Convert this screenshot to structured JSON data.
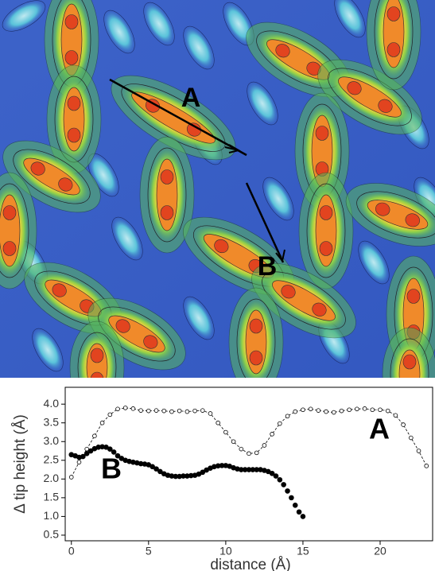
{
  "image": {
    "labels": [
      "A",
      "B"
    ]
  },
  "chart_data": {
    "type": "line",
    "xlabel": "distance (Å)",
    "ylabel": "Δ tip height (Å)",
    "xlim": [
      -0.4,
      23.4
    ],
    "ylim": [
      0.35,
      4.45
    ],
    "xticks": [
      0,
      5,
      10,
      15,
      20
    ],
    "yticks": [
      0.5,
      {
        "value": 1,
        "label": "1.0"
      },
      1.5,
      {
        "value": 2,
        "label": "2.0"
      },
      2.5,
      {
        "value": 3,
        "label": "3.0"
      },
      3.5,
      {
        "value": 4,
        "label": "4.0"
      }
    ],
    "series": [
      {
        "name": "A",
        "color": "#000000",
        "marker": "open",
        "line": "dashed",
        "x": [
          0,
          0.5,
          1,
          1.5,
          2,
          2.5,
          3,
          3.5,
          4,
          4.5,
          5,
          5.5,
          6,
          6.5,
          7,
          7.5,
          8,
          8.5,
          9,
          9.5,
          10,
          10.5,
          11,
          11.5,
          12,
          12.5,
          13,
          13.5,
          14,
          14.5,
          15,
          15.5,
          16,
          16.5,
          17,
          17.5,
          18,
          18.5,
          19,
          19.5,
          20,
          20.5,
          21,
          21.5,
          22,
          22.5,
          23
        ],
        "values": [
          2.05,
          2.45,
          2.8,
          3.15,
          3.5,
          3.72,
          3.87,
          3.9,
          3.88,
          3.83,
          3.82,
          3.83,
          3.82,
          3.8,
          3.82,
          3.8,
          3.82,
          3.83,
          3.75,
          3.5,
          3.25,
          3.0,
          2.8,
          2.68,
          2.7,
          2.9,
          3.2,
          3.48,
          3.68,
          3.8,
          3.85,
          3.87,
          3.83,
          3.8,
          3.78,
          3.82,
          3.85,
          3.87,
          3.88,
          3.85,
          3.85,
          3.82,
          3.7,
          3.45,
          3.1,
          2.75,
          2.35
        ]
      },
      {
        "name": "B",
        "color": "#000000",
        "marker": "filled",
        "line": "none",
        "x": [
          0,
          0.25,
          0.5,
          0.75,
          1,
          1.25,
          1.5,
          1.75,
          2,
          2.25,
          2.5,
          2.75,
          3,
          3.25,
          3.5,
          3.75,
          4,
          4.25,
          4.5,
          4.75,
          5,
          5.25,
          5.5,
          5.75,
          6,
          6.25,
          6.5,
          6.75,
          7,
          7.25,
          7.5,
          7.75,
          8,
          8.25,
          8.5,
          8.75,
          9,
          9.25,
          9.5,
          9.75,
          10,
          10.25,
          10.5,
          10.75,
          11,
          11.25,
          11.5,
          11.75,
          12,
          12.25,
          12.5,
          12.75,
          13,
          13.25,
          13.5,
          13.75,
          14,
          14.25,
          14.5,
          14.75,
          15
        ],
        "values": [
          2.65,
          2.62,
          2.58,
          2.6,
          2.68,
          2.75,
          2.81,
          2.85,
          2.86,
          2.85,
          2.8,
          2.72,
          2.62,
          2.55,
          2.5,
          2.47,
          2.45,
          2.43,
          2.41,
          2.4,
          2.38,
          2.33,
          2.27,
          2.2,
          2.14,
          2.1,
          2.08,
          2.07,
          2.07,
          2.08,
          2.08,
          2.09,
          2.1,
          2.13,
          2.18,
          2.24,
          2.29,
          2.33,
          2.35,
          2.36,
          2.36,
          2.34,
          2.3,
          2.27,
          2.25,
          2.25,
          2.25,
          2.25,
          2.25,
          2.25,
          2.23,
          2.2,
          2.15,
          2.08,
          1.98,
          1.85,
          1.68,
          1.5,
          1.3,
          1.12,
          1.0
        ]
      }
    ]
  }
}
